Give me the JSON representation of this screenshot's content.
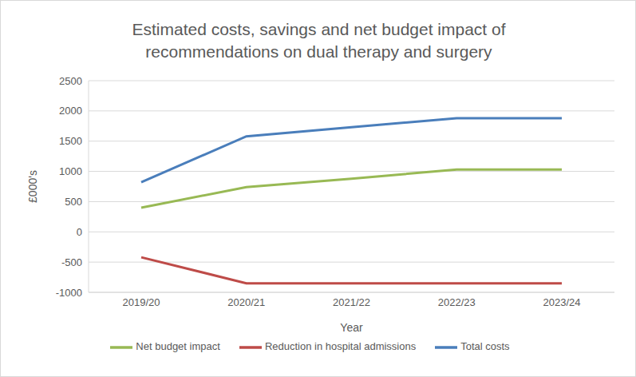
{
  "chart_data": {
    "type": "line",
    "title": "Estimated costs, savings and net budget impact of recommendations on dual therapy and surgery",
    "x_label": "Year",
    "y_label": "£000's",
    "categories": [
      "2019/20",
      "2020/21",
      "2021/22",
      "2022/23",
      "2023/24"
    ],
    "series": [
      {
        "name": "Total costs",
        "color": "#4a7ebb",
        "values": [
          820,
          1580,
          1730,
          1880,
          1880
        ]
      },
      {
        "name": "Reduction in hospital admissions",
        "color": "#be4b48",
        "values": [
          -420,
          -850,
          -850,
          -850,
          -850
        ]
      },
      {
        "name": "Net budget impact",
        "color": "#98b954",
        "values": [
          400,
          740,
          880,
          1030,
          1030
        ]
      }
    ],
    "ylim": [
      -1000,
      2500
    ],
    "yticks": [
      -1000,
      -500,
      0,
      500,
      1000,
      1500,
      2000,
      2500
    ],
    "grid": true,
    "legend": "bottom"
  }
}
